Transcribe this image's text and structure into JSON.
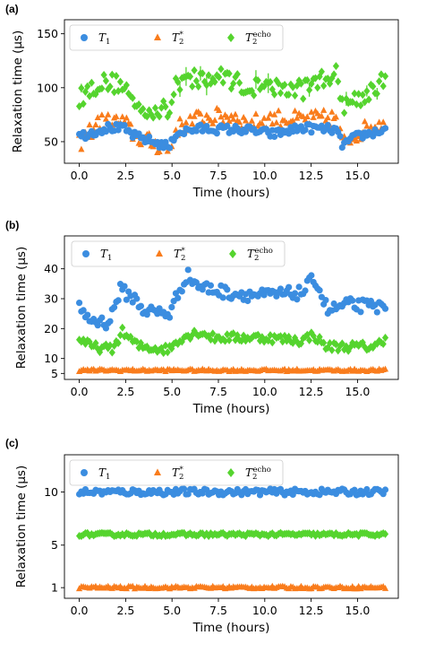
{
  "figure": {
    "series_names": [
      "T1",
      "T2*",
      "T2echo"
    ],
    "colors": {
      "T1": "#3b8de0",
      "T2star": "#f97c1c",
      "T2echo": "#55d42e"
    }
  },
  "chart_data": [
    {
      "panel_label": "(a)",
      "type": "scatter",
      "xlabel": "Time (hours)",
      "ylabel": "Relaxation time (μs)",
      "xlim": [
        -0.8,
        17.2
      ],
      "ylim": [
        30,
        163
      ],
      "xticks": [
        0.0,
        2.5,
        5.0,
        7.5,
        10.0,
        12.5,
        15.0
      ],
      "xtick_labels": [
        "0.0",
        "2.5",
        "5.0",
        "7.5",
        "10.0",
        "12.5",
        "15.0"
      ],
      "yticks": [
        50,
        100,
        150
      ],
      "ytick_labels": [
        "50",
        "100",
        "150"
      ],
      "legend": {
        "position": "top-left",
        "entries": [
          "T1",
          "T2*",
          "T2echo"
        ]
      },
      "series": [
        {
          "name": "T1",
          "marker": "circle",
          "profile": [
            [
              0,
              55
            ],
            [
              1.5,
              63
            ],
            [
              2.4,
              62
            ],
            [
              3.0,
              55
            ],
            [
              4.9,
              45
            ],
            [
              5.2,
              58
            ],
            [
              6.5,
              62
            ],
            [
              9.0,
              61
            ],
            [
              10.5,
              57
            ],
            [
              12.0,
              63
            ],
            [
              13.8,
              61
            ],
            [
              14.2,
              47
            ],
            [
              15.0,
              55
            ],
            [
              16.5,
              61
            ]
          ]
        },
        {
          "name": "T2*",
          "marker": "triangle",
          "profile": [
            [
              0,
              48
            ],
            [
              1.0,
              68
            ],
            [
              2.4,
              68
            ],
            [
              3.0,
              55
            ],
            [
              4.9,
              42
            ],
            [
              5.2,
              62
            ],
            [
              6.5,
              72
            ],
            [
              8.5,
              74
            ],
            [
              9.0,
              66
            ],
            [
              10.5,
              72
            ],
            [
              12.0,
              70
            ],
            [
              13.8,
              72
            ],
            [
              14.2,
              48
            ],
            [
              15.0,
              58
            ],
            [
              16.5,
              70
            ]
          ]
        },
        {
          "name": "T2echo",
          "marker": "diamond",
          "profile": [
            [
              0,
              90
            ],
            [
              1.0,
              104
            ],
            [
              2.4,
              104
            ],
            [
              3.0,
              82
            ],
            [
              4.9,
              78
            ],
            [
              5.2,
              106
            ],
            [
              6.5,
              108
            ],
            [
              8.0,
              110
            ],
            [
              9.0,
              100
            ],
            [
              10.5,
              100
            ],
            [
              12.0,
              98
            ],
            [
              13.8,
              115
            ],
            [
              14.2,
              85
            ],
            [
              15.0,
              90
            ],
            [
              16.5,
              106
            ]
          ]
        }
      ]
    },
    {
      "panel_label": "(b)",
      "type": "scatter",
      "xlabel": "Time (hours)",
      "ylabel": "Relaxation time (μs)",
      "xlim": [
        -0.8,
        17.2
      ],
      "ylim": [
        3,
        51
      ],
      "xticks": [
        0.0,
        2.5,
        5.0,
        7.5,
        10.0,
        12.5,
        15.0
      ],
      "xtick_labels": [
        "0.0",
        "2.5",
        "5.0",
        "7.5",
        "10.0",
        "12.5",
        "15.0"
      ],
      "yticks": [
        5,
        10,
        20,
        30,
        40
      ],
      "ytick_labels": [
        "5",
        "10",
        "20",
        "30",
        "40"
      ],
      "legend": {
        "position": "top",
        "entries": [
          "T1",
          "T2*",
          "T2echo"
        ]
      },
      "series": [
        {
          "name": "T1",
          "marker": "circle",
          "profile": [
            [
              0,
              28
            ],
            [
              0.5,
              23
            ],
            [
              1.6,
              22
            ],
            [
              2.2,
              33
            ],
            [
              3.0,
              30
            ],
            [
              3.5,
              26
            ],
            [
              4.9,
              25
            ],
            [
              5.2,
              30
            ],
            [
              5.8,
              38
            ],
            [
              6.5,
              34
            ],
            [
              8.0,
              32
            ],
            [
              10.0,
              31
            ],
            [
              12.0,
              32
            ],
            [
              12.7,
              37
            ],
            [
              13.4,
              26
            ],
            [
              14.5,
              28
            ],
            [
              16.5,
              27
            ]
          ]
        },
        {
          "name": "T2*",
          "marker": "triangle",
          "profile": [
            [
              0,
              6
            ],
            [
              8.0,
              6
            ],
            [
              16.5,
              6
            ]
          ]
        },
        {
          "name": "T2echo",
          "marker": "diamond",
          "profile": [
            [
              0,
              17
            ],
            [
              0.6,
              14
            ],
            [
              1.8,
              13
            ],
            [
              2.3,
              19
            ],
            [
              3.2,
              14
            ],
            [
              4.8,
              13
            ],
            [
              5.5,
              17
            ],
            [
              6.5,
              19
            ],
            [
              7.2,
              17
            ],
            [
              10.0,
              17
            ],
            [
              12.0,
              16
            ],
            [
              12.6,
              18
            ],
            [
              13.3,
              14
            ],
            [
              16.0,
              14
            ],
            [
              16.5,
              17
            ]
          ]
        }
      ]
    },
    {
      "panel_label": "(c)",
      "type": "scatter",
      "xlabel": "Time (hours)",
      "ylabel": "Relaxation time (μs)",
      "xlim": [
        -0.8,
        17.2
      ],
      "ylim": [
        0,
        13.5
      ],
      "xticks": [
        0.0,
        2.5,
        5.0,
        7.5,
        10.0,
        12.5,
        15.0
      ],
      "xtick_labels": [
        "0.0",
        "2.5",
        "5.0",
        "7.5",
        "10.0",
        "12.5",
        "15.0"
      ],
      "yticks": [
        1,
        5,
        10
      ],
      "ytick_labels": [
        "1",
        "5",
        "10"
      ],
      "legend": {
        "position": "top-left",
        "entries": [
          "T1",
          "T2*",
          "T2echo"
        ]
      },
      "series": [
        {
          "name": "T1",
          "marker": "circle",
          "profile": [
            [
              0,
              10
            ],
            [
              16.5,
              10
            ]
          ]
        },
        {
          "name": "T2*",
          "marker": "triangle",
          "profile": [
            [
              0,
              1
            ],
            [
              16.5,
              1
            ]
          ]
        },
        {
          "name": "T2echo",
          "marker": "diamond",
          "profile": [
            [
              0,
              6
            ],
            [
              16.5,
              6
            ]
          ]
        }
      ]
    }
  ]
}
